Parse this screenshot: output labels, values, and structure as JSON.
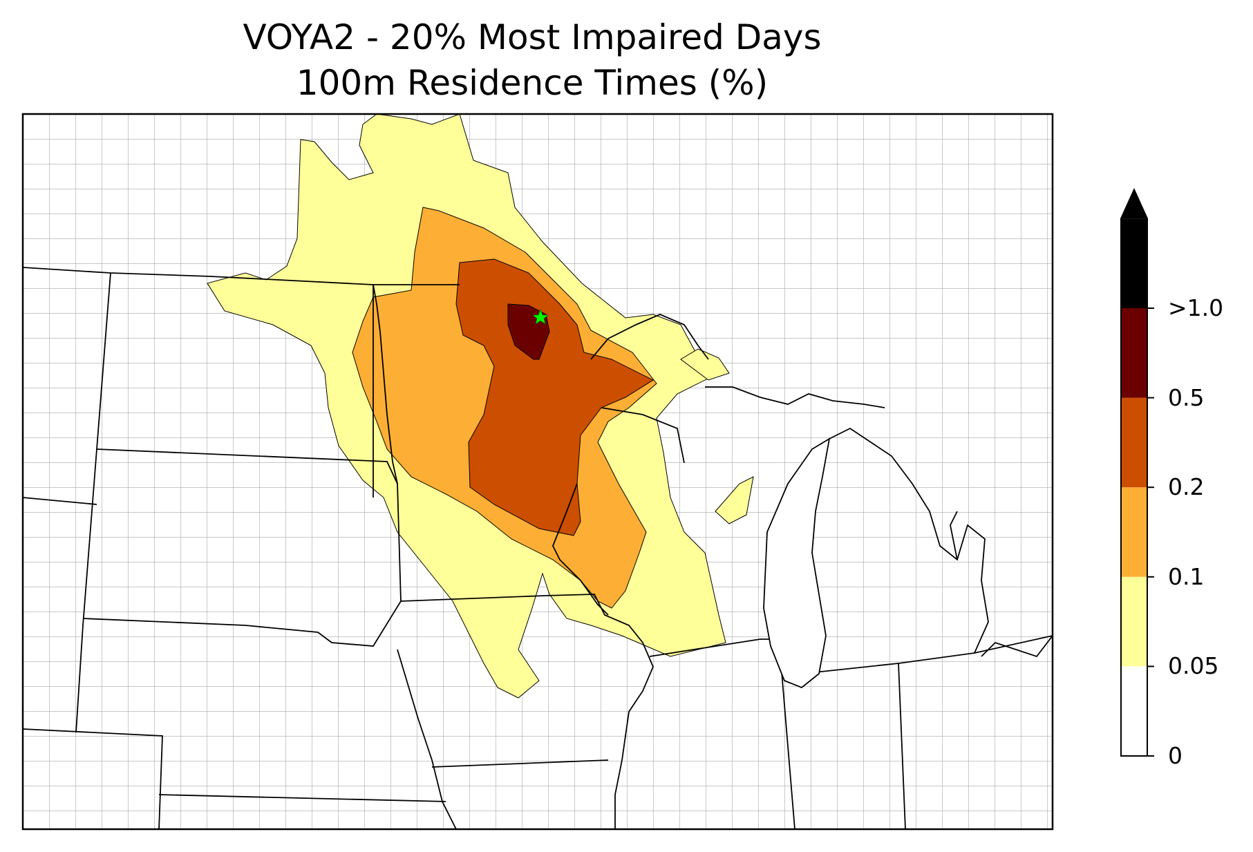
{
  "title": {
    "line1": "VOYA2 - 20% Most Impaired Days",
    "line2": "100m Residence Times (%)"
  },
  "legend": {
    "labels": [
      "0",
      "0.05",
      "0.1",
      "0.2",
      "0.5",
      ">1.0"
    ],
    "colors": [
      "#ffffff",
      "#ffff99",
      "#fdae35",
      "#cc4e00",
      "#6b0000",
      "#000000"
    ],
    "extend": "max"
  },
  "map": {
    "receptor_marker": "green-star",
    "receptor_color": "#00ff00",
    "border_color": "#000000",
    "county_color": "#a0a0a0"
  }
}
